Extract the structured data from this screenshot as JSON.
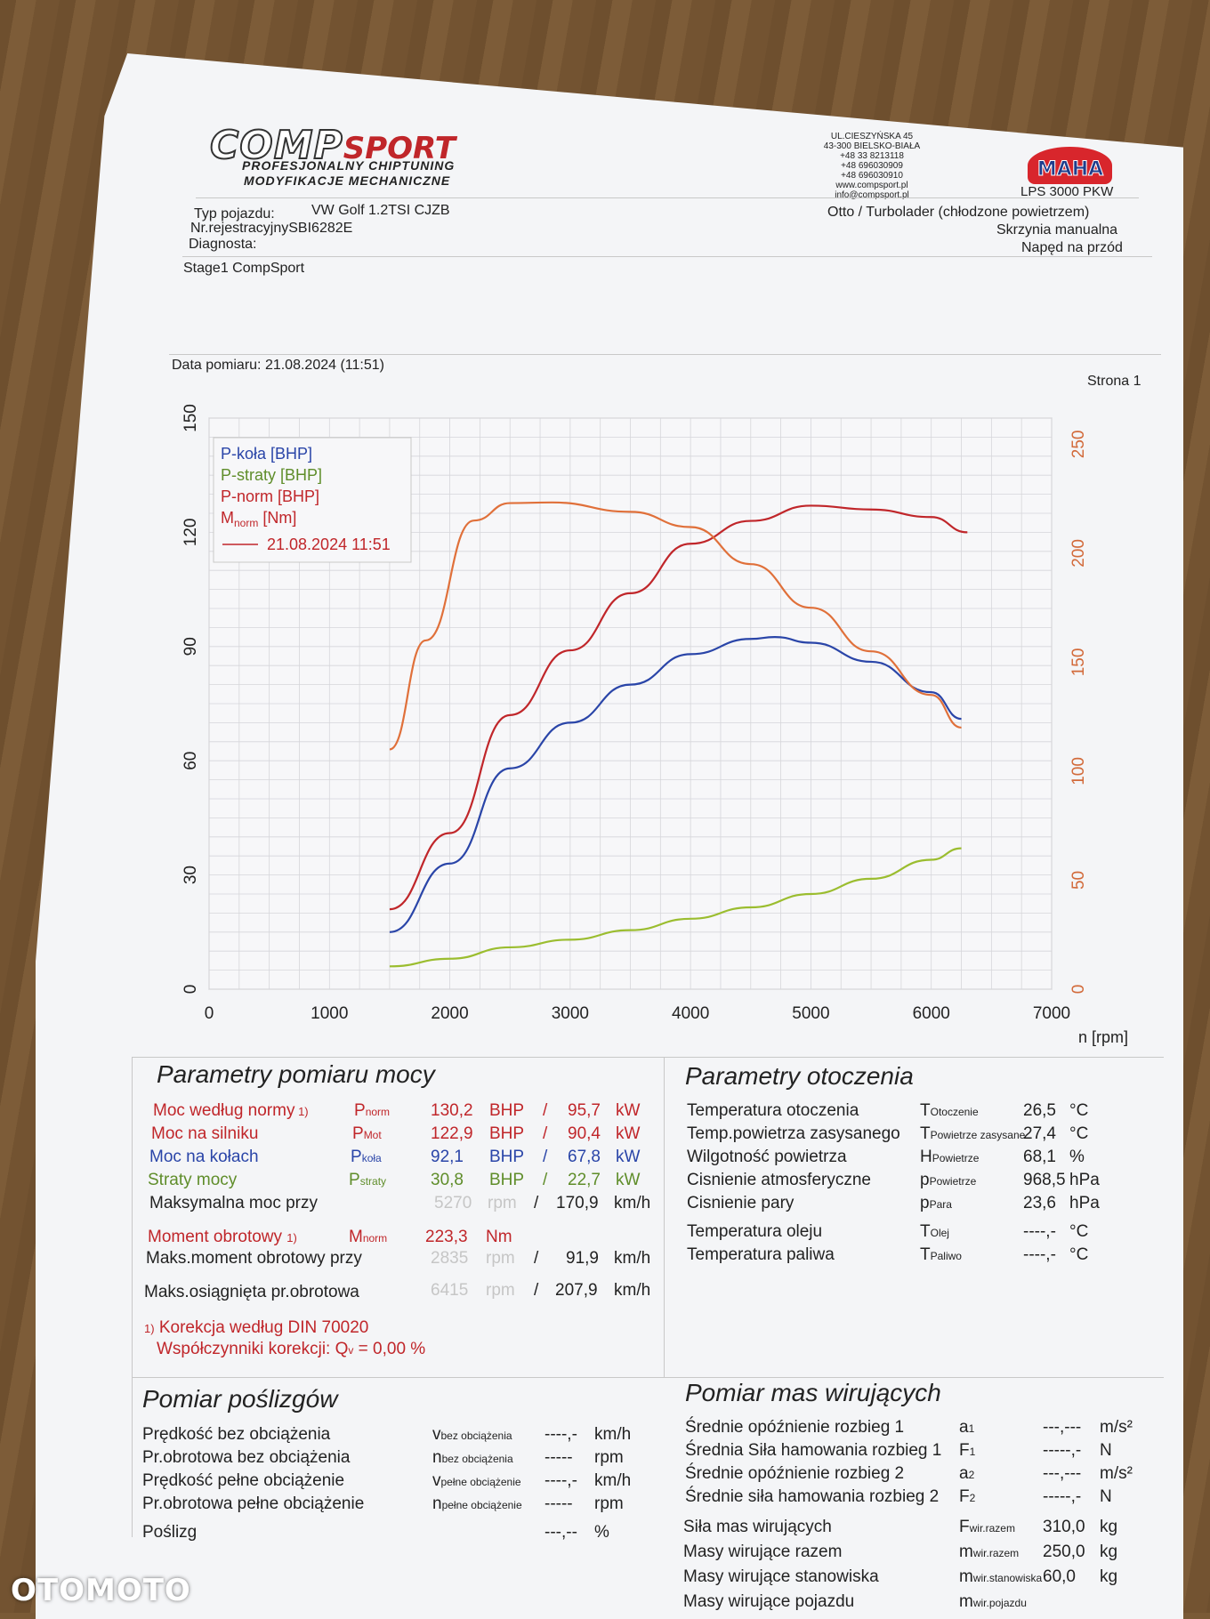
{
  "header": {
    "logo": "COMPSPORT",
    "logo_comp": "COMP",
    "logo_sport": "SPORT",
    "tagline1": "PROFESJONALNY CHIPTUNING",
    "tagline2": "MODYFIKACJE MECHANICZNE",
    "address": [
      "UL.CIESZYŃSKA 45",
      "43-300 BIELSKO-BIAŁA",
      "+48 33 8213118",
      "+48 696030909",
      "+48 696030910",
      "www.compsport.pl",
      "info@compsport.pl"
    ],
    "maha": "MAHA",
    "dyno": "LPS 3000 PKW"
  },
  "vehicle": {
    "typ_label": "Typ pojazdu:",
    "typ_value": "VW Golf 1.2TSI CJZB",
    "nr_label": "Nr.rejestracyjny",
    "nr_value": "SBI6282E",
    "diag_label": "Diagnosta:",
    "engine": "Otto / Turbolader (chłodzone powietrzem)",
    "gearbox": "Skrzynia manualna",
    "drive": "Napęd na przód",
    "note": "Stage1 CompSport",
    "date": "Data pomiaru: 21.08.2024 (11:51)",
    "page": "Strona 1"
  },
  "chart_data": {
    "type": "line",
    "x": [
      1500,
      2000,
      2500,
      3000,
      3500,
      4000,
      4500,
      5000,
      5500,
      6000,
      6250
    ],
    "x_ticks": [
      "0",
      "1000",
      "2000",
      "3000",
      "4000",
      "5000",
      "6000",
      "7000"
    ],
    "xlabel": "n [rpm]",
    "y_ticks": [
      "0",
      "30",
      "60",
      "90",
      "120",
      "150"
    ],
    "y2_ticks": [
      "0",
      "50",
      "100",
      "150",
      "200",
      "250"
    ],
    "ylim": [
      0,
      150
    ],
    "y2lim": [
      0,
      262
    ],
    "xlim": [
      0,
      7000
    ],
    "grid": true,
    "legend_position": "top-left",
    "legend": [
      {
        "label": "P-koła [BHP]",
        "color": "#2a45a8"
      },
      {
        "label": "P-straty [BHP]",
        "color": "#5f8d2a"
      },
      {
        "label": "P-norm [BHP]",
        "color": "#c0262a"
      },
      {
        "label": "M",
        "sub": "norm",
        "suffix": " [Nm]",
        "color": "#c0262a"
      }
    ],
    "legend_date": "21.08.2024 11:51",
    "series": [
      {
        "name": "P-koła [BHP]",
        "axis": "left",
        "color": "#2a45a8",
        "x": [
          1500,
          2000,
          2500,
          3000,
          3500,
          4000,
          4500,
          4700,
          5000,
          5500,
          6000,
          6250
        ],
        "values": [
          15,
          33,
          58,
          70,
          80,
          88,
          92,
          92.5,
          91,
          86,
          78,
          71
        ]
      },
      {
        "name": "P-straty [BHP]",
        "axis": "left",
        "color": "#9bbd2f",
        "x": [
          1500,
          2000,
          2500,
          3000,
          3500,
          4000,
          4500,
          5000,
          5500,
          6000,
          6250
        ],
        "values": [
          6,
          8,
          11,
          13,
          15.5,
          18.5,
          21.5,
          25,
          29,
          34,
          37
        ]
      },
      {
        "name": "P-norm [BHP]",
        "axis": "left",
        "color": "#c0262a",
        "x": [
          1500,
          2000,
          2500,
          3000,
          3500,
          4000,
          4500,
          5000,
          5500,
          6000,
          6300
        ],
        "values": [
          21,
          41,
          72,
          89,
          104,
          117,
          123,
          127,
          126,
          124,
          120
        ]
      },
      {
        "name": "M norm [Nm]",
        "axis": "right",
        "color": "#e0703a",
        "x": [
          1500,
          1800,
          2200,
          2500,
          2850,
          3500,
          4000,
          4500,
          5000,
          5500,
          6000,
          6250
        ],
        "values": [
          110,
          160,
          215,
          223,
          223.3,
          219,
          212,
          195,
          175,
          155,
          135,
          120
        ]
      }
    ]
  },
  "power": {
    "title": "Parametry pomiaru mocy",
    "rows": [
      {
        "label": "Moc według normy",
        "mark": "1)",
        "sym": "P",
        "sub": "norm",
        "v1": "130,2",
        "u1": "BHP",
        "sep": "/",
        "v2": "95,7",
        "u2": "kW",
        "color": "red"
      },
      {
        "label": "Moc na silniku",
        "mark": "",
        "sym": "P",
        "sub": "Mot",
        "v1": "122,9",
        "u1": "BHP",
        "sep": "/",
        "v2": "90,4",
        "u2": "kW",
        "color": "red"
      },
      {
        "label": "Moc na kołach",
        "mark": "",
        "sym": "P",
        "sub": "koła",
        "v1": "92,1",
        "u1": "BHP",
        "sep": "/",
        "v2": "67,8",
        "u2": "kW",
        "color": "blue"
      },
      {
        "label": "Straty mocy",
        "mark": "",
        "sym": "P",
        "sub": "straty",
        "v1": "30,8",
        "u1": "BHP",
        "sep": "/",
        "v2": "22,7",
        "u2": "kW",
        "color": "green"
      }
    ],
    "max_power_label": "Maksymalna moc przy",
    "max_power_rpm": "5270",
    "max_power_rpm_unit": "rpm",
    "max_power_speed": "170,9",
    "speed_unit": "km/h",
    "torque_label": "Moment obrotowy",
    "torque_mark": "1)",
    "torque_sym": "M",
    "torque_sub": "norm",
    "torque_value": "223,3",
    "torque_unit": "Nm",
    "max_torque_label": "Maks.moment obrotowy przy",
    "max_torque_rpm": "2835",
    "max_torque_speed": "91,9",
    "max_rpm_label": "Maks.osiągnięta pr.obrotowa",
    "max_rpm": "6415",
    "max_rpm_speed": "207,9",
    "correction_mark": "1)",
    "correction": "Korekcja według DIN 70020",
    "coeff_label": "Współczynniki korekcji: Q",
    "coeff_sub": "v",
    "coeff_value": "= 0,00 %",
    "sep": "/"
  },
  "ambient": {
    "title": "Parametry otoczenia",
    "rows": [
      {
        "label": "Temperatura otoczenia",
        "sym": "T",
        "sub": "Otoczenie",
        "value": "26,5",
        "unit": "°C"
      },
      {
        "label": "Temp.powietrza zasysanego",
        "sym": "T",
        "sub": "Powietrze zasysane",
        "value": "27,4",
        "unit": "°C"
      },
      {
        "label": "Wilgotność powietrza",
        "sym": "H",
        "sub": "Powietrze",
        "value": "68,1",
        "unit": "%"
      },
      {
        "label": "Cisnienie atmosferyczne",
        "sym": "p",
        "sub": "Powietrze",
        "value": "968,5",
        "unit": "hPa"
      },
      {
        "label": "Cisnienie pary",
        "sym": "p",
        "sub": "Para",
        "value": "23,6",
        "unit": "hPa"
      },
      {
        "label": "Temperatura oleju",
        "sym": "T",
        "sub": "Olej",
        "value": "----,-",
        "unit": "°C"
      },
      {
        "label": "Temperatura paliwa",
        "sym": "T",
        "sub": "Paliwo",
        "value": "----,-",
        "unit": "°C"
      }
    ]
  },
  "slip": {
    "title": "Pomiar poślizgów",
    "rows": [
      {
        "label": "Prędkość bez obciążenia",
        "sym": "v",
        "sub": "bez obciążenia",
        "value": "----,-",
        "unit": "km/h"
      },
      {
        "label": "Pr.obrotowa bez obciążenia",
        "sym": "n",
        "sub": "bez obciążenia",
        "value": "-----",
        "unit": "rpm"
      },
      {
        "label": "Prędkość pełne obciążenie",
        "sym": "v",
        "sub": "pełne obciążenie",
        "value": "----,-",
        "unit": "km/h"
      },
      {
        "label": "Pr.obrotowa pełne obciążenie",
        "sym": "n",
        "sub": "pełne obciążenie",
        "value": "-----",
        "unit": "rpm"
      },
      {
        "label": "Poślizg",
        "sym": "",
        "sub": "",
        "value": "---,--",
        "unit": "%"
      }
    ]
  },
  "masses": {
    "title": "Pomiar mas wirujących",
    "rows": [
      {
        "label": "Średnie opóźnienie rozbieg 1",
        "sym": "a",
        "sub": "1",
        "value": "---,---",
        "unit": "m/s²"
      },
      {
        "label": "Średnia Siła hamowania rozbieg 1",
        "sym": "F",
        "sub": "1",
        "value": "-----,-",
        "unit": "N"
      },
      {
        "label": "Średnie opóźnienie rozbieg 2",
        "sym": "a",
        "sub": "2",
        "value": "---,---",
        "unit": "m/s²"
      },
      {
        "label": "Średnie siła hamowania rozbieg 2",
        "sym": "F",
        "sub": "2",
        "value": "-----,-",
        "unit": "N"
      },
      {
        "label": "Siła mas wirujących",
        "sym": "F",
        "sub": "wir.razem",
        "value": "310,0",
        "unit": "kg"
      },
      {
        "label": "Masy wirujące razem",
        "sym": "m",
        "sub": "wir.razem",
        "value": "250,0",
        "unit": "kg"
      },
      {
        "label": "Masy wirujące stanowiska",
        "sym": "m",
        "sub": "wir.stanowiska",
        "value": "60,0",
        "unit": "kg"
      },
      {
        "label": "Masy wirujące pojazdu",
        "sym": "m",
        "sub": "wir.pojazdu",
        "value": "",
        "unit": ""
      }
    ]
  },
  "watermark": "OTOMOTO"
}
